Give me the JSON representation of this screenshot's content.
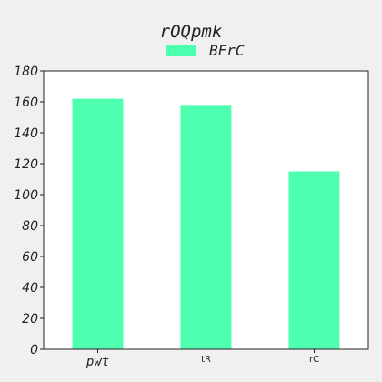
{
  "chart_data": {
    "type": "bar",
    "title": "rOQpmk",
    "categories": [
      "pwt",
      "tR",
      "rC"
    ],
    "series": [
      {
        "name": "BFrC",
        "values": [
          162,
          158,
          115
        ]
      }
    ],
    "xlabel": "",
    "ylabel": "",
    "ylim": [
      0,
      180
    ],
    "yticks": [
      0,
      20,
      40,
      60,
      80,
      100,
      120,
      140,
      160,
      180
    ],
    "grid": false,
    "legend_position": "top-center",
    "colors": {
      "bar": "#4dffae",
      "background": "#f0f0f0",
      "plot_background": "#ffffff",
      "axis": "#222222"
    }
  }
}
